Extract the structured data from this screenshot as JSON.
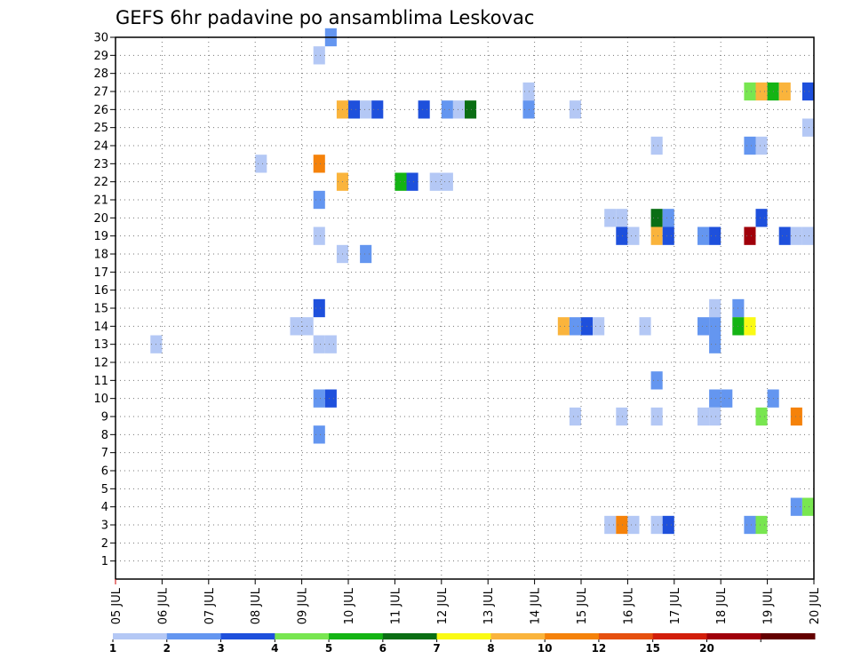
{
  "chart_data": {
    "type": "heatmap",
    "title": "GEFS 6hr padavine po ansamblima Leskovac",
    "xlabel": "",
    "ylabel": "",
    "x_ticks": [
      "05 JUL",
      "06 JUL",
      "07 JUL",
      "08 JUL",
      "09 JUL",
      "10 JUL",
      "11 JUL",
      "12 JUL",
      "13 JUL",
      "14 JUL",
      "15 JUL",
      "16 JUL",
      "17 JUL",
      "18 JUL",
      "19 JUL",
      "20 JUL"
    ],
    "xlim": [
      5,
      20
    ],
    "x_step_days": 0.25,
    "y_ticks": [
      "1",
      "2",
      "3",
      "4",
      "5",
      "6",
      "7",
      "8",
      "9",
      "10",
      "11",
      "12",
      "13",
      "14",
      "15",
      "16",
      "17",
      "18",
      "19",
      "20",
      "21",
      "22",
      "23",
      "24",
      "25",
      "26",
      "27",
      "28",
      "29",
      "30"
    ],
    "ylim": [
      0,
      30
    ],
    "grid": true,
    "legend_position": "bottom",
    "color_bins": [
      {
        "label": "1",
        "color": "#b4c8f5"
      },
      {
        "label": "2",
        "color": "#6496f0"
      },
      {
        "label": "3",
        "color": "#1e50dc"
      },
      {
        "label": "4",
        "color": "#78e650"
      },
      {
        "label": "5",
        "color": "#14b414"
      },
      {
        "label": "6",
        "color": "#0a6e14"
      },
      {
        "label": "7",
        "color": "#fafa14"
      },
      {
        "label": "8",
        "color": "#fab43c"
      },
      {
        "label": "10",
        "color": "#f5820a"
      },
      {
        "label": "12",
        "color": "#e6500f"
      },
      {
        "label": "15",
        "color": "#d21e0a"
      },
      {
        "label": "20",
        "color": "#a0000a"
      },
      {
        "label": "",
        "color": "#640000"
      }
    ],
    "cells": [
      {
        "day": 9.5,
        "member": 30,
        "bin": 1
      },
      {
        "day": 9.25,
        "member": 29,
        "bin": 0
      },
      {
        "day": 13.75,
        "member": 27,
        "bin": 0
      },
      {
        "day": 18.5,
        "member": 27,
        "bin": 3
      },
      {
        "day": 18.75,
        "member": 27,
        "bin": 7
      },
      {
        "day": 19.0,
        "member": 27,
        "bin": 4
      },
      {
        "day": 19.25,
        "member": 27,
        "bin": 7
      },
      {
        "day": 19.75,
        "member": 27,
        "bin": 2
      },
      {
        "day": 9.75,
        "member": 26,
        "bin": 7
      },
      {
        "day": 10.0,
        "member": 26,
        "bin": 2
      },
      {
        "day": 10.25,
        "member": 26,
        "bin": 0
      },
      {
        "day": 10.5,
        "member": 26,
        "bin": 2
      },
      {
        "day": 11.5,
        "member": 26,
        "bin": 2
      },
      {
        "day": 12.0,
        "member": 26,
        "bin": 1
      },
      {
        "day": 12.25,
        "member": 26,
        "bin": 0
      },
      {
        "day": 12.5,
        "member": 26,
        "bin": 5
      },
      {
        "day": 13.75,
        "member": 26,
        "bin": 1
      },
      {
        "day": 14.75,
        "member": 26,
        "bin": 0
      },
      {
        "day": 19.75,
        "member": 25,
        "bin": 0
      },
      {
        "day": 16.5,
        "member": 24,
        "bin": 0
      },
      {
        "day": 18.5,
        "member": 24,
        "bin": 1
      },
      {
        "day": 18.75,
        "member": 24,
        "bin": 0
      },
      {
        "day": 8.0,
        "member": 23,
        "bin": 0
      },
      {
        "day": 9.25,
        "member": 23,
        "bin": 8
      },
      {
        "day": 9.75,
        "member": 22,
        "bin": 7
      },
      {
        "day": 11.0,
        "member": 22,
        "bin": 4
      },
      {
        "day": 11.25,
        "member": 22,
        "bin": 2
      },
      {
        "day": 11.75,
        "member": 22,
        "bin": 0
      },
      {
        "day": 12.0,
        "member": 22,
        "bin": 0
      },
      {
        "day": 9.25,
        "member": 21,
        "bin": 1
      },
      {
        "day": 15.5,
        "member": 20,
        "bin": 0
      },
      {
        "day": 15.75,
        "member": 20,
        "bin": 0
      },
      {
        "day": 16.5,
        "member": 20,
        "bin": 5
      },
      {
        "day": 16.75,
        "member": 20,
        "bin": 1
      },
      {
        "day": 18.75,
        "member": 20,
        "bin": 2
      },
      {
        "day": 9.25,
        "member": 19,
        "bin": 0
      },
      {
        "day": 15.75,
        "member": 19,
        "bin": 2
      },
      {
        "day": 16.0,
        "member": 19,
        "bin": 0
      },
      {
        "day": 16.5,
        "member": 19,
        "bin": 7
      },
      {
        "day": 16.75,
        "member": 19,
        "bin": 2
      },
      {
        "day": 17.5,
        "member": 19,
        "bin": 1
      },
      {
        "day": 17.75,
        "member": 19,
        "bin": 2
      },
      {
        "day": 18.5,
        "member": 19,
        "bin": 11
      },
      {
        "day": 19.25,
        "member": 19,
        "bin": 2
      },
      {
        "day": 19.5,
        "member": 19,
        "bin": 0
      },
      {
        "day": 19.75,
        "member": 19,
        "bin": 0
      },
      {
        "day": 9.75,
        "member": 18,
        "bin": 0
      },
      {
        "day": 10.25,
        "member": 18,
        "bin": 1
      },
      {
        "day": 9.25,
        "member": 15,
        "bin": 2
      },
      {
        "day": 17.75,
        "member": 15,
        "bin": 0
      },
      {
        "day": 18.25,
        "member": 15,
        "bin": 1
      },
      {
        "day": 8.75,
        "member": 14,
        "bin": 0
      },
      {
        "day": 9.0,
        "member": 14,
        "bin": 0
      },
      {
        "day": 14.5,
        "member": 14,
        "bin": 7
      },
      {
        "day": 14.75,
        "member": 14,
        "bin": 1
      },
      {
        "day": 15.0,
        "member": 14,
        "bin": 2
      },
      {
        "day": 15.25,
        "member": 14,
        "bin": 0
      },
      {
        "day": 16.25,
        "member": 14,
        "bin": 0
      },
      {
        "day": 17.5,
        "member": 14,
        "bin": 1
      },
      {
        "day": 17.75,
        "member": 14,
        "bin": 1
      },
      {
        "day": 18.25,
        "member": 14,
        "bin": 4
      },
      {
        "day": 18.5,
        "member": 14,
        "bin": 6
      },
      {
        "day": 5.75,
        "member": 13,
        "bin": 0
      },
      {
        "day": 9.25,
        "member": 13,
        "bin": 0
      },
      {
        "day": 9.5,
        "member": 13,
        "bin": 0
      },
      {
        "day": 17.75,
        "member": 13,
        "bin": 1
      },
      {
        "day": 16.5,
        "member": 11,
        "bin": 1
      },
      {
        "day": 9.25,
        "member": 10,
        "bin": 1
      },
      {
        "day": 9.5,
        "member": 10,
        "bin": 2
      },
      {
        "day": 17.75,
        "member": 10,
        "bin": 1
      },
      {
        "day": 18.0,
        "member": 10,
        "bin": 1
      },
      {
        "day": 19.0,
        "member": 10,
        "bin": 1
      },
      {
        "day": 14.75,
        "member": 9,
        "bin": 0
      },
      {
        "day": 15.75,
        "member": 9,
        "bin": 0
      },
      {
        "day": 16.5,
        "member": 9,
        "bin": 0
      },
      {
        "day": 17.5,
        "member": 9,
        "bin": 0
      },
      {
        "day": 17.75,
        "member": 9,
        "bin": 0
      },
      {
        "day": 18.75,
        "member": 9,
        "bin": 3
      },
      {
        "day": 19.5,
        "member": 9,
        "bin": 8
      },
      {
        "day": 9.25,
        "member": 8,
        "bin": 1
      },
      {
        "day": 19.5,
        "member": 4,
        "bin": 1
      },
      {
        "day": 19.75,
        "member": 4,
        "bin": 3
      },
      {
        "day": 15.5,
        "member": 3,
        "bin": 0
      },
      {
        "day": 15.75,
        "member": 3,
        "bin": 8
      },
      {
        "day": 16.0,
        "member": 3,
        "bin": 0
      },
      {
        "day": 16.5,
        "member": 3,
        "bin": 0
      },
      {
        "day": 16.75,
        "member": 3,
        "bin": 2
      },
      {
        "day": 18.5,
        "member": 3,
        "bin": 1
      },
      {
        "day": 18.75,
        "member": 3,
        "bin": 3
      }
    ]
  }
}
